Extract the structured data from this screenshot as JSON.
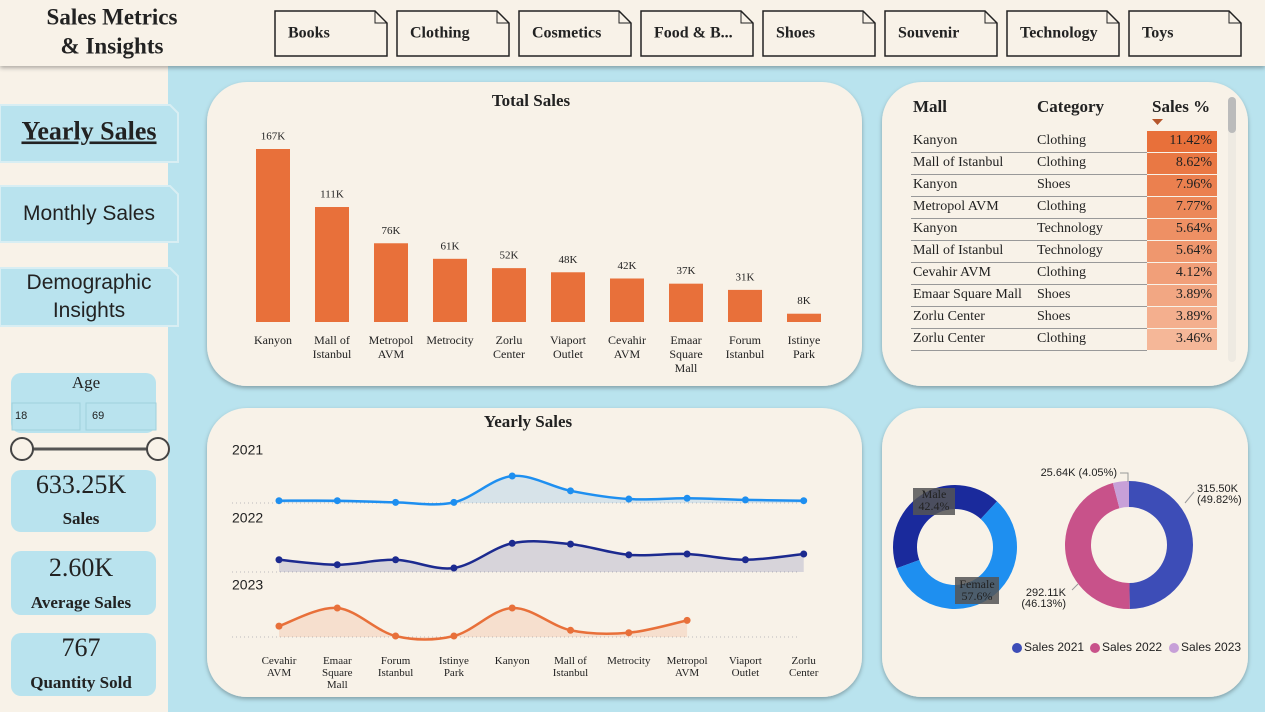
{
  "header": {
    "title_lines": [
      "Sales Metrics",
      "& Insights"
    ],
    "tabs": [
      "Books",
      "Clothing",
      "Cosmetics",
      "Food & B...",
      "Shoes",
      "Souvenir",
      "Technology",
      "Toys"
    ]
  },
  "nav": [
    "Yearly Sales",
    "Monthly Sales",
    "Demographic Insights"
  ],
  "filter": {
    "label": "Age",
    "min": 18,
    "max": 69
  },
  "kpis": [
    {
      "value": "633.25K",
      "label": "Sales"
    },
    {
      "value": "2.60K",
      "label": "Average Sales"
    },
    {
      "value": "767",
      "label": "Quantity Sold"
    }
  ],
  "table": {
    "columns": [
      "Mall",
      "Category",
      "Sales %"
    ],
    "rows": [
      [
        "Kanyon",
        "Clothing",
        "11.42%"
      ],
      [
        "Mall of Istanbul",
        "Clothing",
        "8.62%"
      ],
      [
        "Kanyon",
        "Shoes",
        "7.96%"
      ],
      [
        "Metropol AVM",
        "Clothing",
        "7.77%"
      ],
      [
        "Kanyon",
        "Technology",
        "5.64%"
      ],
      [
        "Mall of Istanbul",
        "Technology",
        "5.64%"
      ],
      [
        "Cevahir AVM",
        "Clothing",
        "4.12%"
      ],
      [
        "Emaar Square Mall",
        "Shoes",
        "3.89%"
      ],
      [
        "Zorlu Center",
        "Shoes",
        "3.89%"
      ],
      [
        "Zorlu Center",
        "Clothing",
        "3.46%"
      ]
    ]
  },
  "chart_data": [
    {
      "type": "bar",
      "title": "Total Sales",
      "categories": [
        "Kanyon",
        "Mall of Istanbul",
        "Metropol AVM",
        "Metrocity",
        "Zorlu Center",
        "Viaport Outlet",
        "Cevahir AVM",
        "Emaar Square Mall",
        "Forum Istanbul",
        "Istinye Park"
      ],
      "values": [
        167,
        111,
        76,
        61,
        52,
        48,
        42,
        37,
        31,
        8
      ],
      "value_labels": [
        "167K",
        "111K",
        "76K",
        "61K",
        "52K",
        "48K",
        "42K",
        "37K",
        "31K",
        "8K"
      ],
      "color": "#e8703a"
    },
    {
      "type": "line",
      "title": "Yearly Sales",
      "categories": [
        "Cevahir AVM",
        "Emaar Square Mall",
        "Forum Istanbul",
        "Istinye Park",
        "Kanyon",
        "Mall of Istanbul",
        "Metrocity",
        "Metropol AVM",
        "Viaport Outlet",
        "Zorlu Center"
      ],
      "series": [
        {
          "name": "2021",
          "color": "#1e8ff0",
          "values": [
            32,
            32,
            30,
            30,
            62,
            44,
            34,
            35,
            33,
            32
          ]
        },
        {
          "name": "2022",
          "color": "#1c2a8f",
          "values": [
            38,
            32,
            38,
            28,
            58,
            57,
            44,
            45,
            38,
            45
          ]
        },
        {
          "name": "2023",
          "color": "#e8703a",
          "values": [
            40,
            62,
            28,
            28,
            62,
            35,
            32,
            47,
            null,
            null
          ]
        }
      ]
    },
    {
      "type": "pie",
      "categories": [
        "Male",
        "Female"
      ],
      "values": [
        42.4,
        57.6
      ],
      "value_labels": [
        "42.4%",
        "57.6%"
      ],
      "colors": [
        "#1a2a9c",
        "#1e8ff0"
      ]
    },
    {
      "type": "pie",
      "categories": [
        "Sales 2021",
        "Sales 2022",
        "Sales 2023"
      ],
      "values": [
        315.5,
        292.11,
        25.64
      ],
      "value_labels": [
        "315.50K (49.82%)",
        "292.11K (46.13%)",
        "25.64K (4.05%)"
      ],
      "colors": [
        "#3d4db7",
        "#c8528a",
        "#c7a0d8"
      ],
      "legend": "bottom"
    }
  ]
}
